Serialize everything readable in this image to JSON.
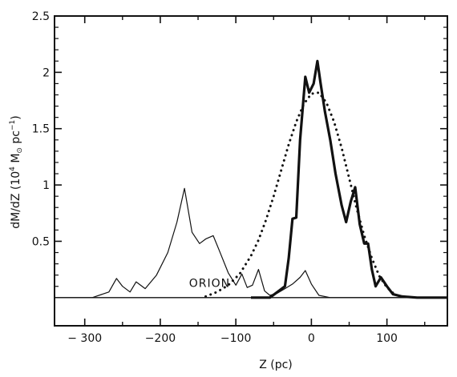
{
  "chart_data": {
    "type": "line",
    "xlabel": "Z (pc)",
    "ylabel_main": "dM/dZ (10",
    "ylabel_exp1": "4",
    "ylabel_unit": " M",
    "ylabel_sun": "⊙",
    "ylabel_pc": " pc",
    "ylabel_exp2": "−1",
    "ylabel_close": ")",
    "xlim": [
      -340,
      180
    ],
    "ylim": [
      -0.25,
      2.5
    ],
    "x_ticks": [
      {
        "value": -300,
        "label": "− 300"
      },
      {
        "value": -200,
        "label": "−200"
      },
      {
        "value": -100,
        "label": "−100"
      },
      {
        "value": 0,
        "label": "0"
      },
      {
        "value": 100,
        "label": "100"
      }
    ],
    "y_ticks": [
      {
        "value": 0.5,
        "label": "0.5"
      },
      {
        "value": 1.0,
        "label": "1"
      },
      {
        "value": 1.5,
        "label": "1.5"
      },
      {
        "value": 2.0,
        "label": "2"
      },
      {
        "value": 2.5,
        "label": "2.5"
      }
    ],
    "annotations": [
      {
        "text": "ORION",
        "x": -162,
        "y": 0.13
      }
    ],
    "series": [
      {
        "style": "thin",
        "x": [
          -340,
          -290,
          -268,
          -258,
          -250,
          -240,
          -232,
          -220,
          -205,
          -190,
          -178,
          -168,
          -158,
          -148,
          -140,
          -130,
          -122,
          -110,
          -100,
          -92,
          -85,
          -78,
          -70,
          -62,
          -55,
          -45,
          -35,
          -25,
          -15,
          -8,
          0,
          10,
          25,
          45,
          80,
          120,
          180
        ],
        "y": [
          0,
          0,
          0.05,
          0.17,
          0.1,
          0.05,
          0.14,
          0.08,
          0.2,
          0.4,
          0.67,
          0.97,
          0.58,
          0.48,
          0.52,
          0.55,
          0.42,
          0.22,
          0.11,
          0.21,
          0.09,
          0.11,
          0.25,
          0.06,
          0.02,
          0.04,
          0.08,
          0.12,
          0.18,
          0.24,
          0.12,
          0.02,
          0,
          0,
          0,
          0,
          0
        ]
      },
      {
        "style": "thick",
        "x": [
          -80,
          -55,
          -45,
          -35,
          -30,
          -25,
          -20,
          -15,
          -8,
          -3,
          3,
          8,
          12,
          18,
          25,
          32,
          40,
          46,
          52,
          58,
          64,
          70,
          75,
          80,
          85,
          92,
          100,
          108,
          120,
          140,
          180
        ],
        "y": [
          0,
          0,
          0.05,
          0.1,
          0.35,
          0.7,
          0.71,
          1.4,
          1.96,
          1.82,
          1.9,
          2.1,
          1.91,
          1.65,
          1.4,
          1.1,
          0.82,
          0.67,
          0.85,
          0.98,
          0.65,
          0.48,
          0.48,
          0.25,
          0.1,
          0.18,
          0.1,
          0.03,
          0.01,
          0,
          0
        ]
      },
      {
        "style": "dotted",
        "x": [
          -140,
          -125,
          -110,
          -95,
          -80,
          -70,
          -60,
          -50,
          -40,
          -30,
          -20,
          -10,
          0,
          10,
          20,
          30,
          40,
          50,
          60,
          70,
          80,
          90,
          100,
          110
        ],
        "y": [
          0.01,
          0.05,
          0.11,
          0.21,
          0.37,
          0.51,
          0.69,
          0.9,
          1.13,
          1.36,
          1.56,
          1.72,
          1.81,
          1.82,
          1.73,
          1.56,
          1.33,
          1.06,
          0.79,
          0.55,
          0.35,
          0.19,
          0.09,
          0.03
        ]
      }
    ]
  }
}
